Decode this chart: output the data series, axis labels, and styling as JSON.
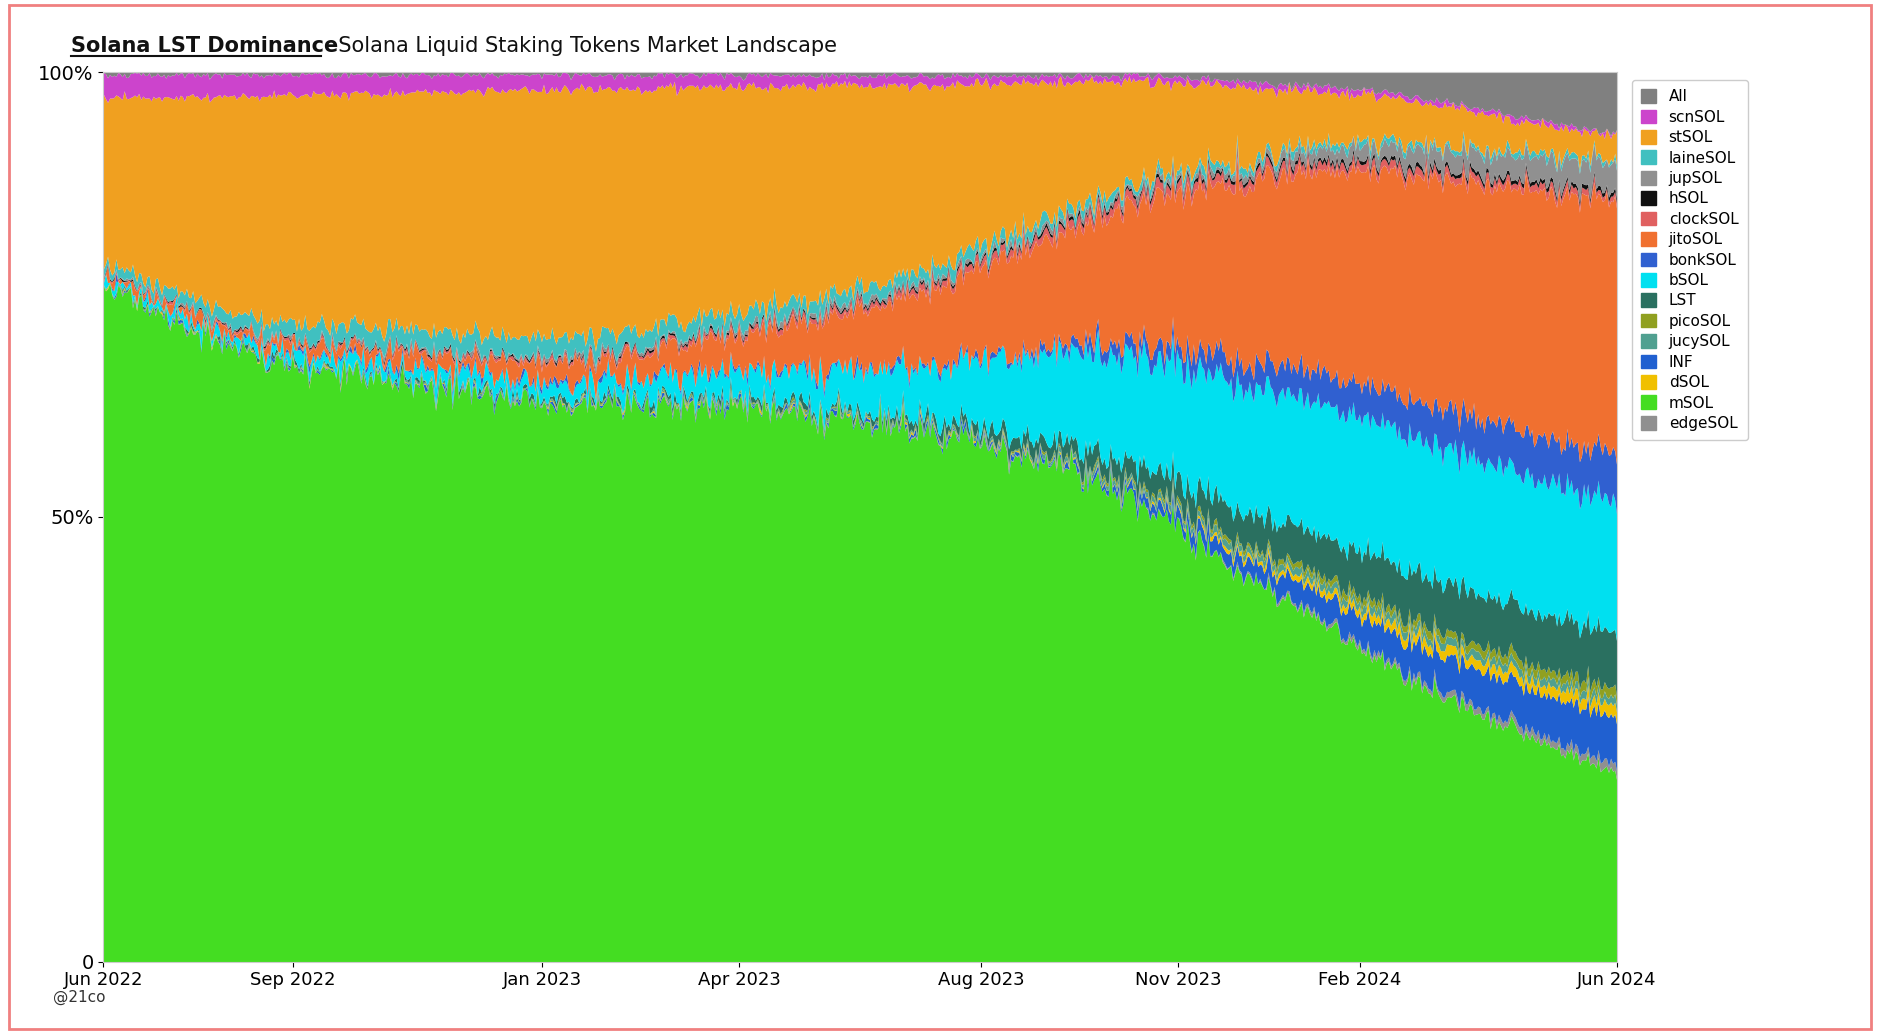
{
  "title_bold": "Solana LST Dominance",
  "title_normal": "  Solana Liquid Staking Tokens Market Landscape",
  "background_color": "#ffffff",
  "plot_bg_color": "#ffffff",
  "border_color": "#f08080",
  "ytick_labels": [
    "0",
    "50%",
    "100%"
  ],
  "ytick_values": [
    0,
    0.5,
    1.0
  ],
  "x_tick_labels": [
    "Jun 2022",
    "Sep 2022",
    "Jan 2023",
    "Apr 2023",
    "Aug 2023",
    "Nov 2023",
    "Feb 2024",
    "Jun 2024"
  ],
  "x_tick_positions": [
    0.0,
    0.125,
    0.29,
    0.42,
    0.58,
    0.71,
    0.83,
    1.0
  ],
  "legend_labels": [
    "All",
    "scnSOL",
    "stSOL",
    "laineSOL",
    "jupSOL",
    "hSOL",
    "clockSOL",
    "jitoSOL",
    "bonkSOL",
    "bSOL",
    "LST",
    "picoSOL",
    "jucySOL",
    "INF",
    "dSOL",
    "mSOL",
    "edgeSOL"
  ],
  "legend_colors": [
    "#808080",
    "#cc44cc",
    "#f0a020",
    "#40c0c0",
    "#909090",
    "#101010",
    "#e06060",
    "#f07030",
    "#3060d0",
    "#00e0f0",
    "#2a7060",
    "#90a020",
    "#50a090",
    "#2060d0",
    "#f0c000",
    "#44dd22",
    "#909090"
  ],
  "stack_colors": [
    "#44dd22",
    "#909090",
    "#2060d0",
    "#f0c000",
    "#50a090",
    "#90a020",
    "#2a7060",
    "#00e0f0",
    "#3060d0",
    "#f07030",
    "#e06060",
    "#101010",
    "#909090",
    "#40c0c0",
    "#f0a020",
    "#cc44cc",
    "#808080"
  ],
  "n_points": 730,
  "watermark": "@21co"
}
